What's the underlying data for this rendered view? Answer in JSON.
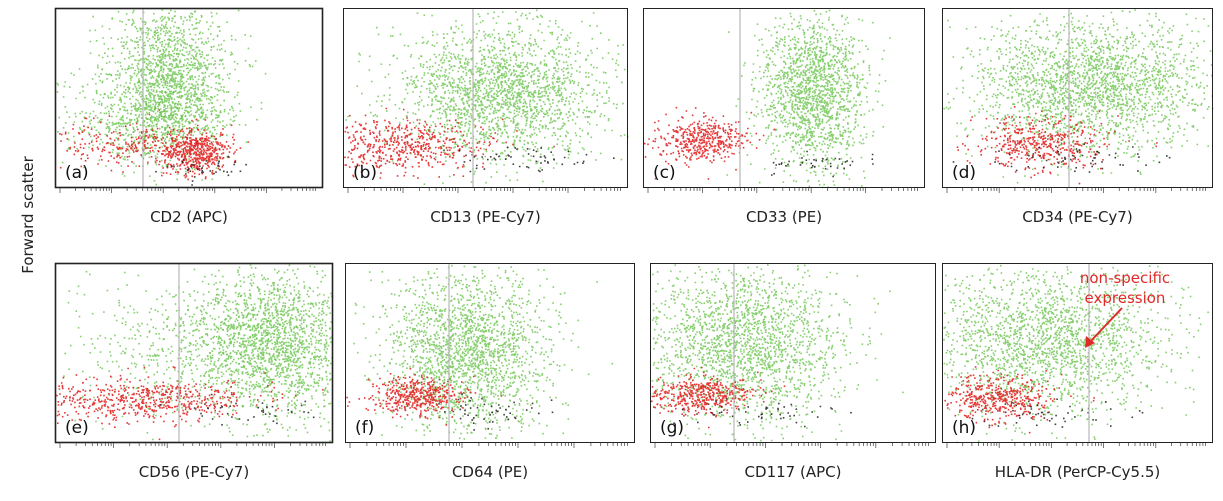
{
  "figure": {
    "y_label": "Forward scatter",
    "annotation": "non-specific expression"
  },
  "colors": {
    "green": "#5fbf3f",
    "red": "#e01818",
    "black": "#111111",
    "frame": "#222222",
    "gate": "#b8b8b8",
    "annotation": "#e02a2a"
  },
  "chart_data": [
    {
      "type": "scatter",
      "panel": "(a)",
      "xlabel": "CD2 (APC)",
      "ylabel": "Forward scatter",
      "x_scale": "log",
      "grid": false
    },
    {
      "type": "scatter",
      "panel": "(b)",
      "xlabel": "CD13 (PE-Cy7)",
      "ylabel": "Forward scatter",
      "x_scale": "log",
      "grid": false
    },
    {
      "type": "scatter",
      "panel": "(c)",
      "xlabel": "CD33 (PE)",
      "ylabel": "Forward scatter",
      "x_scale": "log",
      "grid": false
    },
    {
      "type": "scatter",
      "panel": "(d)",
      "xlabel": "CD34 (PE-Cy7)",
      "ylabel": "Forward scatter",
      "x_scale": "log",
      "grid": false
    },
    {
      "type": "scatter",
      "panel": "(e)",
      "xlabel": "CD56 (PE-Cy7)",
      "ylabel": "Forward scatter",
      "x_scale": "log",
      "grid": false
    },
    {
      "type": "scatter",
      "panel": "(f)",
      "xlabel": "CD64 (PE)",
      "ylabel": "Forward scatter",
      "x_scale": "log",
      "grid": false
    },
    {
      "type": "scatter",
      "panel": "(g)",
      "xlabel": "CD117 (APC)",
      "ylabel": "Forward scatter",
      "x_scale": "log",
      "grid": false
    },
    {
      "type": "scatter",
      "panel": "(h)",
      "xlabel": "HLA-DR (PerCP-Cy5.5)",
      "ylabel": "Forward scatter",
      "x_scale": "log",
      "grid": false
    }
  ]
}
